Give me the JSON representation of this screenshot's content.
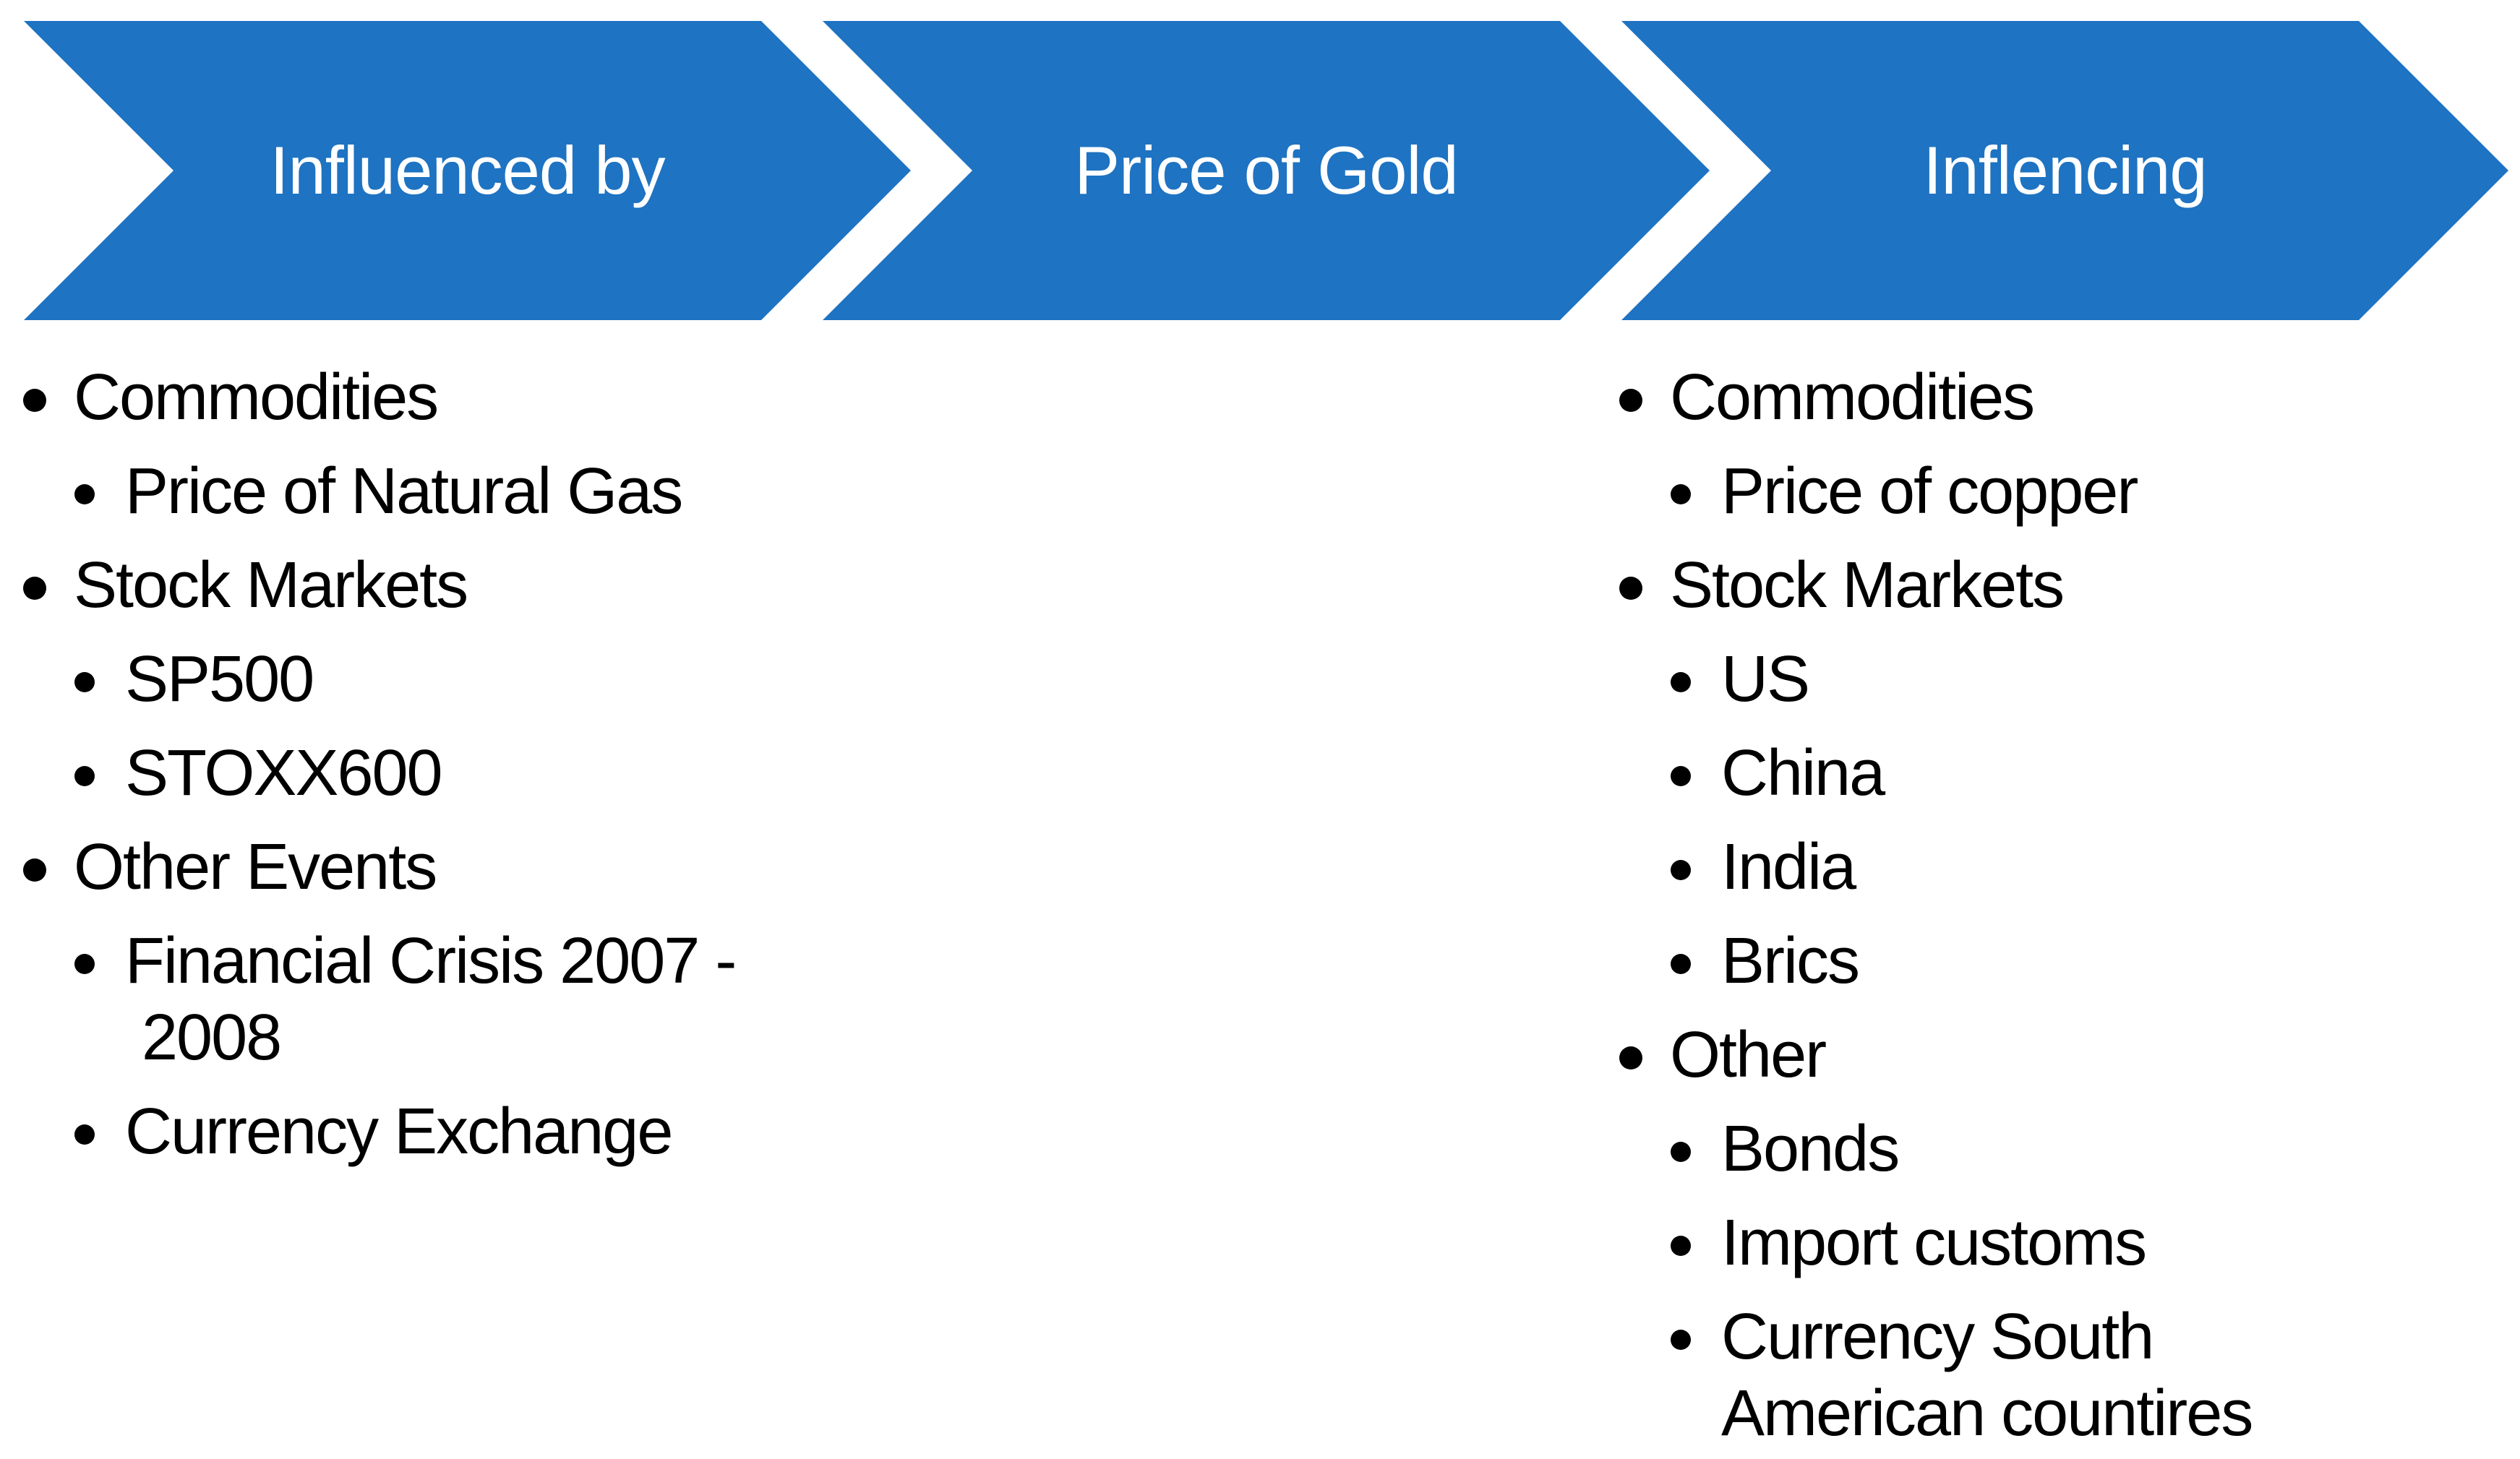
{
  "theme": {
    "arrow_color": "#1e73c2",
    "arrow_label_color": "#ffffff",
    "text_color": "#000000",
    "background_color": "#ffffff"
  },
  "process": {
    "arrows": [
      {
        "label": "Influenced by"
      },
      {
        "label": "Price of Gold"
      },
      {
        "label": "Inflencing"
      }
    ]
  },
  "lists": {
    "left": {
      "items": [
        {
          "level": 1,
          "text": "Commodities"
        },
        {
          "level": 2,
          "text": "Price of Natural Gas"
        },
        {
          "level": 1,
          "text": "Stock Markets"
        },
        {
          "level": 2,
          "text": "SP500"
        },
        {
          "level": 2,
          "text": "STOXX600"
        },
        {
          "level": 1,
          "text": "Other Events"
        },
        {
          "level": 2,
          "text": "Financial Crisis 2007 - 2008"
        },
        {
          "level": 2,
          "text": "Currency Exchange"
        }
      ]
    },
    "right": {
      "items": [
        {
          "level": 1,
          "text": "Commodities"
        },
        {
          "level": 2,
          "text": "Price of copper"
        },
        {
          "level": 1,
          "text": "Stock Markets"
        },
        {
          "level": 2,
          "text": "US"
        },
        {
          "level": 2,
          "text": "China"
        },
        {
          "level": 2,
          "text": "India"
        },
        {
          "level": 2,
          "text": "Brics"
        },
        {
          "level": 1,
          "text": "Other"
        },
        {
          "level": 2,
          "text": "Bonds"
        },
        {
          "level": 2,
          "text": "Import customs"
        },
        {
          "level": 2,
          "text": "Currency South American countires"
        }
      ]
    }
  }
}
